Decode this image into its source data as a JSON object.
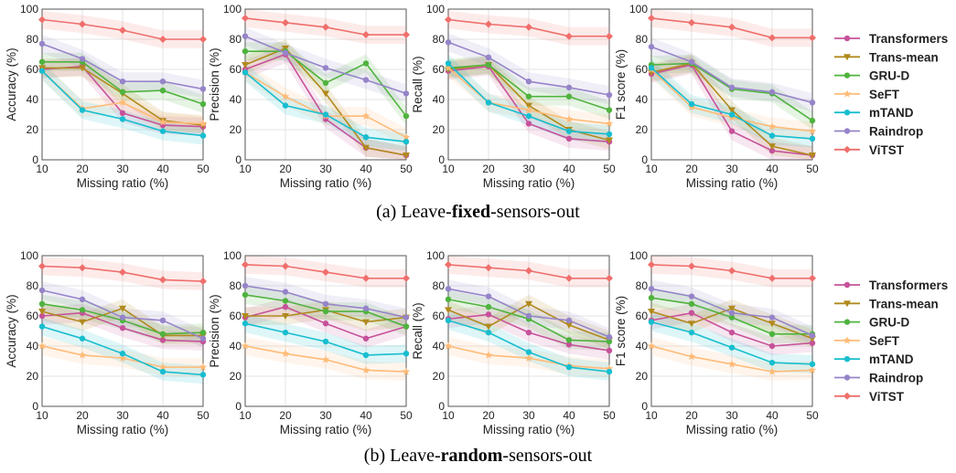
{
  "captions": {
    "a_prefix": "(a) Leave-",
    "a_bold": "fixed",
    "a_suffix": "-sensors-out",
    "b_prefix": "(b) Leave-",
    "b_bold": "random",
    "b_suffix": "-sensors-out"
  },
  "legend": [
    {
      "name": "Transformers",
      "color": "#c6529a",
      "marker": "circle"
    },
    {
      "name": "Trans-mean",
      "color": "#b08a1e",
      "marker": "tri"
    },
    {
      "name": "GRU-D",
      "color": "#4fb33e",
      "marker": "circle"
    },
    {
      "name": "SeFT",
      "color": "#ffbb78",
      "marker": "star"
    },
    {
      "name": "mTAND",
      "color": "#17becf",
      "marker": "circle"
    },
    {
      "name": "Raindrop",
      "color": "#9684c9",
      "marker": "circle"
    },
    {
      "name": "ViTST",
      "color": "#ef6f6c",
      "marker": "diamond"
    }
  ],
  "chart_data": [
    {
      "type": "line",
      "panel": "a",
      "title": "",
      "xlabel": "Missing ratio (%)",
      "ylabel": "Accuracy (%)",
      "x": [
        10,
        20,
        30,
        40,
        50
      ],
      "xlim": [
        10,
        50
      ],
      "ylim": [
        0,
        100
      ],
      "xticks": [
        10,
        20,
        30,
        40,
        50
      ],
      "yticks": [
        0,
        20,
        40,
        60,
        80,
        100
      ],
      "grid": true,
      "series": [
        {
          "name": "Transformers",
          "values": [
            60,
            62,
            31,
            23,
            22
          ]
        },
        {
          "name": "Trans-mean",
          "values": [
            61,
            61,
            44,
            26,
            23
          ]
        },
        {
          "name": "GRU-D",
          "values": [
            65,
            65,
            45,
            46,
            37
          ]
        },
        {
          "name": "SeFT",
          "values": [
            59,
            34,
            38,
            25,
            24
          ]
        },
        {
          "name": "mTAND",
          "values": [
            59,
            33,
            27,
            19,
            16
          ]
        },
        {
          "name": "Raindrop",
          "values": [
            77,
            67,
            52,
            52,
            47
          ]
        },
        {
          "name": "ViTST",
          "values": [
            93,
            90,
            86,
            80,
            80
          ]
        }
      ]
    },
    {
      "type": "line",
      "panel": "a",
      "title": "",
      "xlabel": "Missing ratio (%)",
      "ylabel": "Precision (%)",
      "x": [
        10,
        20,
        30,
        40,
        50
      ],
      "xlim": [
        10,
        50
      ],
      "ylim": [
        0,
        100
      ],
      "xticks": [
        10,
        20,
        30,
        40,
        50
      ],
      "yticks": [
        0,
        20,
        40,
        60,
        80,
        100
      ],
      "grid": true,
      "series": [
        {
          "name": "Transformers",
          "values": [
            60,
            70,
            27,
            8,
            3
          ]
        },
        {
          "name": "Trans-mean",
          "values": [
            63,
            74,
            44,
            8,
            3
          ]
        },
        {
          "name": "GRU-D",
          "values": [
            72,
            72,
            51,
            64,
            29
          ]
        },
        {
          "name": "SeFT",
          "values": [
            58,
            42,
            29,
            29,
            15
          ]
        },
        {
          "name": "mTAND",
          "values": [
            58,
            36,
            30,
            15,
            12
          ]
        },
        {
          "name": "Raindrop",
          "values": [
            82,
            71,
            61,
            53,
            44
          ]
        },
        {
          "name": "ViTST",
          "values": [
            94,
            91,
            88,
            83,
            83
          ]
        }
      ]
    },
    {
      "type": "line",
      "panel": "a",
      "title": "",
      "xlabel": "Missing ratio (%)",
      "ylabel": "Recall (%)",
      "x": [
        10,
        20,
        30,
        40,
        50
      ],
      "xlim": [
        10,
        50
      ],
      "ylim": [
        0,
        100
      ],
      "xticks": [
        10,
        20,
        30,
        40,
        50
      ],
      "yticks": [
        0,
        20,
        40,
        60,
        80,
        100
      ],
      "grid": true,
      "series": [
        {
          "name": "Transformers",
          "values": [
            59,
            62,
            24,
            14,
            12
          ]
        },
        {
          "name": "Trans-mean",
          "values": [
            60,
            63,
            36,
            20,
            13
          ]
        },
        {
          "name": "GRU-D",
          "values": [
            61,
            63,
            42,
            42,
            33
          ]
        },
        {
          "name": "SeFT",
          "values": [
            61,
            38,
            33,
            27,
            24
          ]
        },
        {
          "name": "mTAND",
          "values": [
            64,
            38,
            29,
            19,
            17
          ]
        },
        {
          "name": "Raindrop",
          "values": [
            78,
            68,
            52,
            48,
            43
          ]
        },
        {
          "name": "ViTST",
          "values": [
            93,
            90,
            88,
            82,
            82
          ]
        }
      ]
    },
    {
      "type": "line",
      "panel": "a",
      "title": "",
      "xlabel": "Missing ratio (%)",
      "ylabel": "F1 score (%)",
      "x": [
        10,
        20,
        30,
        40,
        50
      ],
      "xlim": [
        10,
        50
      ],
      "ylim": [
        0,
        100
      ],
      "xticks": [
        10,
        20,
        30,
        40,
        50
      ],
      "yticks": [
        0,
        20,
        40,
        60,
        80,
        100
      ],
      "grid": true,
      "series": [
        {
          "name": "Transformers",
          "values": [
            57,
            63,
            19,
            6,
            3
          ]
        },
        {
          "name": "Trans-mean",
          "values": [
            58,
            64,
            33,
            9,
            3
          ]
        },
        {
          "name": "GRU-D",
          "values": [
            63,
            64,
            47,
            44,
            26
          ]
        },
        {
          "name": "SeFT",
          "values": [
            60,
            35,
            28,
            22,
            19
          ]
        },
        {
          "name": "mTAND",
          "values": [
            61,
            37,
            30,
            16,
            14
          ]
        },
        {
          "name": "Raindrop",
          "values": [
            75,
            65,
            48,
            45,
            38
          ]
        },
        {
          "name": "ViTST",
          "values": [
            94,
            91,
            88,
            81,
            81
          ]
        }
      ]
    },
    {
      "type": "line",
      "panel": "b",
      "title": "",
      "xlabel": "Missing ratio (%)",
      "ylabel": "Accuracy (%)",
      "x": [
        10,
        20,
        30,
        40,
        50
      ],
      "xlim": [
        10,
        50
      ],
      "ylim": [
        0,
        100
      ],
      "xticks": [
        10,
        20,
        30,
        40,
        50
      ],
      "yticks": [
        0,
        20,
        40,
        60,
        80,
        100
      ],
      "grid": true,
      "series": [
        {
          "name": "Transformers",
          "values": [
            60,
            62,
            52,
            44,
            43
          ]
        },
        {
          "name": "Trans-mean",
          "values": [
            63,
            56,
            65,
            47,
            47
          ]
        },
        {
          "name": "GRU-D",
          "values": [
            68,
            64,
            57,
            48,
            49
          ]
        },
        {
          "name": "SeFT",
          "values": [
            40,
            34,
            32,
            26,
            26
          ]
        },
        {
          "name": "mTAND",
          "values": [
            53,
            45,
            35,
            23,
            21
          ]
        },
        {
          "name": "Raindrop",
          "values": [
            77,
            71,
            59,
            57,
            45
          ]
        },
        {
          "name": "ViTST",
          "values": [
            93,
            92,
            89,
            84,
            83
          ]
        }
      ]
    },
    {
      "type": "line",
      "panel": "b",
      "title": "",
      "xlabel": "Missing ratio (%)",
      "ylabel": "Precision (%)",
      "x": [
        10,
        20,
        30,
        40,
        50
      ],
      "xlim": [
        10,
        50
      ],
      "ylim": [
        0,
        100
      ],
      "xticks": [
        10,
        20,
        30,
        40,
        50
      ],
      "yticks": [
        0,
        20,
        40,
        60,
        80,
        100
      ],
      "grid": true,
      "series": [
        {
          "name": "Transformers",
          "values": [
            59,
            66,
            55,
            45,
            53
          ]
        },
        {
          "name": "Trans-mean",
          "values": [
            60,
            60,
            64,
            56,
            59
          ]
        },
        {
          "name": "GRU-D",
          "values": [
            74,
            70,
            63,
            63,
            53
          ]
        },
        {
          "name": "SeFT",
          "values": [
            40,
            35,
            31,
            24,
            23
          ]
        },
        {
          "name": "mTAND",
          "values": [
            55,
            49,
            43,
            34,
            35
          ]
        },
        {
          "name": "Raindrop",
          "values": [
            80,
            76,
            68,
            65,
            59
          ]
        },
        {
          "name": "ViTST",
          "values": [
            94,
            93,
            89,
            85,
            85
          ]
        }
      ]
    },
    {
      "type": "line",
      "panel": "b",
      "title": "",
      "xlabel": "Missing ratio (%)",
      "ylabel": "Recall (%)",
      "x": [
        10,
        20,
        30,
        40,
        50
      ],
      "xlim": [
        10,
        50
      ],
      "ylim": [
        0,
        100
      ],
      "xticks": [
        10,
        20,
        30,
        40,
        50
      ],
      "yticks": [
        0,
        20,
        40,
        60,
        80,
        100
      ],
      "grid": true,
      "series": [
        {
          "name": "Transformers",
          "values": [
            58,
            61,
            49,
            41,
            37
          ]
        },
        {
          "name": "Trans-mean",
          "values": [
            64,
            53,
            68,
            54,
            44
          ]
        },
        {
          "name": "GRU-D",
          "values": [
            71,
            66,
            58,
            44,
            43
          ]
        },
        {
          "name": "SeFT",
          "values": [
            40,
            34,
            32,
            27,
            25
          ]
        },
        {
          "name": "mTAND",
          "values": [
            57,
            49,
            36,
            26,
            23
          ]
        },
        {
          "name": "Raindrop",
          "values": [
            78,
            73,
            60,
            57,
            46
          ]
        },
        {
          "name": "ViTST",
          "values": [
            94,
            92,
            90,
            85,
            85
          ]
        }
      ]
    },
    {
      "type": "line",
      "panel": "b",
      "title": "",
      "xlabel": "Missing ratio (%)",
      "ylabel": "F1 score (%)",
      "x": [
        10,
        20,
        30,
        40,
        50
      ],
      "xlim": [
        10,
        50
      ],
      "ylim": [
        0,
        100
      ],
      "xticks": [
        10,
        20,
        30,
        40,
        50
      ],
      "yticks": [
        0,
        20,
        40,
        60,
        80,
        100
      ],
      "grid": true,
      "series": [
        {
          "name": "Transformers",
          "values": [
            57,
            62,
            49,
            40,
            42
          ]
        },
        {
          "name": "Trans-mean",
          "values": [
            63,
            55,
            65,
            55,
            45
          ]
        },
        {
          "name": "GRU-D",
          "values": [
            72,
            68,
            59,
            48,
            48
          ]
        },
        {
          "name": "SeFT",
          "values": [
            40,
            33,
            28,
            23,
            24
          ]
        },
        {
          "name": "mTAND",
          "values": [
            56,
            49,
            39,
            29,
            28
          ]
        },
        {
          "name": "Raindrop",
          "values": [
            78,
            73,
            62,
            59,
            47
          ]
        },
        {
          "name": "ViTST",
          "values": [
            94,
            93,
            90,
            85,
            85
          ]
        }
      ]
    }
  ]
}
